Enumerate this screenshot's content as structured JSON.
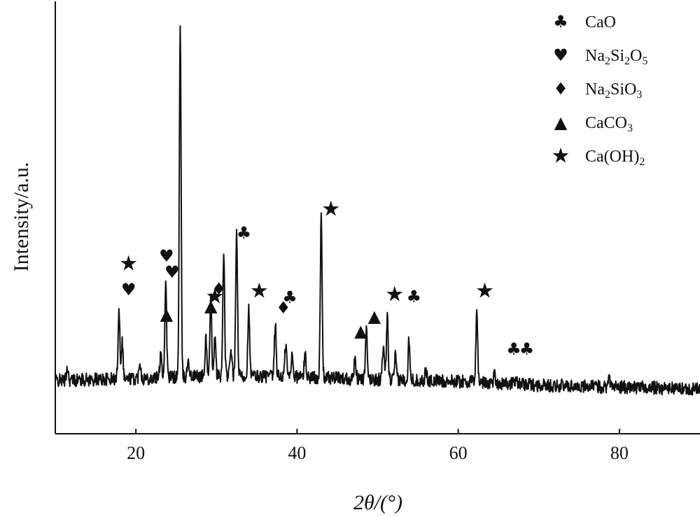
{
  "chart_data": {
    "type": "line",
    "title": "",
    "xlabel": "2θ/(°)",
    "ylabel": "Intensity/a.u.",
    "xlim": [
      10,
      90
    ],
    "xticks": [
      20,
      40,
      60,
      80
    ],
    "yticks_shown": false,
    "grid": false,
    "legend_position": "top-right",
    "legend": [
      {
        "symbol": "♣",
        "label": "CaO",
        "marker": "club"
      },
      {
        "symbol": "♥",
        "label": "Na2Si2O5",
        "marker": "heart"
      },
      {
        "symbol": "♦",
        "label": "Na2SiO3",
        "marker": "diamond"
      },
      {
        "symbol": "▲",
        "label": "CaCO3",
        "marker": "triangle"
      },
      {
        "symbol": "★",
        "label": "Ca(OH)2",
        "marker": "star"
      }
    ],
    "series": [
      {
        "baseline": [
          [
            10,
            1.2
          ],
          [
            20,
            1.4
          ],
          [
            30,
            1.7
          ],
          [
            40,
            1.6
          ],
          [
            50,
            1.3
          ],
          [
            60,
            1.1
          ],
          [
            70,
            0.7
          ],
          [
            80,
            0.5
          ],
          [
            90,
            0.3
          ]
        ],
        "peaks": [
          {
            "x": 11.5,
            "y": 1.4
          },
          {
            "x": 17.9,
            "y": 7.5
          },
          {
            "x": 18.3,
            "y": 4.0
          },
          {
            "x": 20.5,
            "y": 2.0
          },
          {
            "x": 23.1,
            "y": 3.0
          },
          {
            "x": 23.7,
            "y": 10.0
          },
          {
            "x": 25.5,
            "y": 37.0
          },
          {
            "x": 26.5,
            "y": 2.0
          },
          {
            "x": 28.7,
            "y": 4.0
          },
          {
            "x": 29.3,
            "y": 8.0
          },
          {
            "x": 29.8,
            "y": 4.0
          },
          {
            "x": 30.9,
            "y": 13.0
          },
          {
            "x": 31.8,
            "y": 3.0
          },
          {
            "x": 32.5,
            "y": 15.5
          },
          {
            "x": 34.0,
            "y": 7.0
          },
          {
            "x": 37.3,
            "y": 5.5
          },
          {
            "x": 38.6,
            "y": 3.5
          },
          {
            "x": 39.4,
            "y": 2.5
          },
          {
            "x": 41.0,
            "y": 2.5
          },
          {
            "x": 43.0,
            "y": 17.0
          },
          {
            "x": 47.2,
            "y": 2.5
          },
          {
            "x": 48.6,
            "y": 5.0
          },
          {
            "x": 50.7,
            "y": 3.5
          },
          {
            "x": 51.2,
            "y": 6.5
          },
          {
            "x": 52.2,
            "y": 2.5
          },
          {
            "x": 53.9,
            "y": 4.5
          },
          {
            "x": 56.0,
            "y": 1.0
          },
          {
            "x": 62.3,
            "y": 7.5
          },
          {
            "x": 64.5,
            "y": 1.0
          },
          {
            "x": 67.2,
            "y": 1.0
          },
          {
            "x": 78.7,
            "y": 1.5
          }
        ]
      }
    ],
    "peak_markers": [
      {
        "x": 19.1,
        "symbols": [
          "★",
          "♥"
        ]
      },
      {
        "x": 23.8,
        "symbols": [
          "▲"
        ]
      },
      {
        "x": 23.8,
        "symbols": [
          "♥"
        ]
      },
      {
        "x": 24.5,
        "symbols": [
          "♥"
        ]
      },
      {
        "x": 29.3,
        "symbols": [
          "▲"
        ]
      },
      {
        "x": 29.8,
        "symbols": [
          "★"
        ]
      },
      {
        "x": 30.3,
        "symbols": [
          "♦"
        ]
      },
      {
        "x": 33.4,
        "symbols": [
          "♣"
        ]
      },
      {
        "x": 35.3,
        "symbols": [
          "★"
        ]
      },
      {
        "x": 38.3,
        "symbols": [
          "♦"
        ]
      },
      {
        "x": 39.1,
        "symbols": [
          "♣"
        ]
      },
      {
        "x": 44.2,
        "symbols": [
          "★"
        ]
      },
      {
        "x": 47.9,
        "symbols": [
          "▲"
        ]
      },
      {
        "x": 49.6,
        "symbols": [
          "▲"
        ]
      },
      {
        "x": 52.1,
        "symbols": [
          "★"
        ]
      },
      {
        "x": 54.5,
        "symbols": [
          "♣"
        ]
      },
      {
        "x": 63.3,
        "symbols": [
          "★"
        ]
      },
      {
        "x": 66.9,
        "symbols": [
          "♣"
        ]
      },
      {
        "x": 68.5,
        "symbols": [
          "♣"
        ]
      }
    ]
  }
}
